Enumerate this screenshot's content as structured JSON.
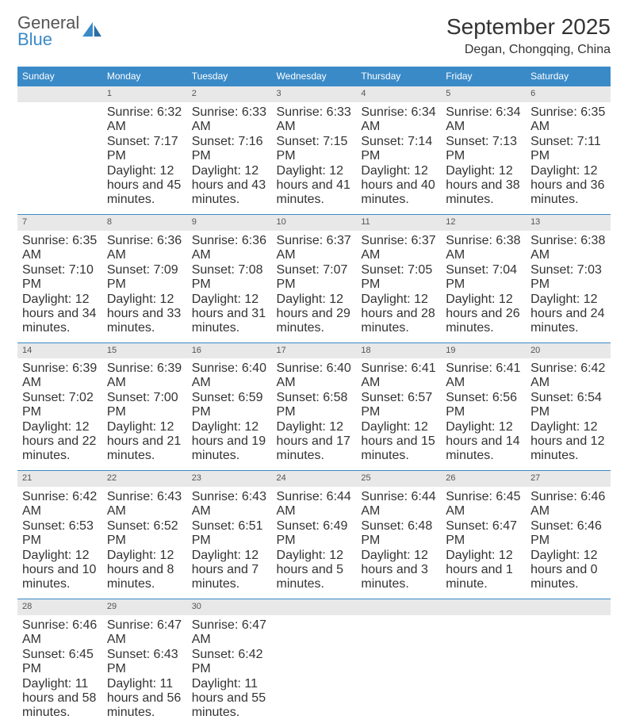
{
  "logo": {
    "word1": "General",
    "word2": "Blue"
  },
  "title": "September 2025",
  "location": "Degan, Chongqing, China",
  "colors": {
    "header_bg": "#3a8ac8",
    "header_text": "#ffffff",
    "daynum_bg": "#e8e8e8",
    "text": "#333333",
    "border": "#3a8ac8",
    "logo_gray": "#555555",
    "logo_blue": "#3a8ac8",
    "background": "#ffffff"
  },
  "typography": {
    "title_fontsize": 28,
    "location_fontsize": 16,
    "header_fontsize": 12,
    "cell_fontsize": 10,
    "font_family": "Arial"
  },
  "layout": {
    "columns": 7,
    "rows": 5,
    "col_width_pct": 14.28
  },
  "day_names": [
    "Sunday",
    "Monday",
    "Tuesday",
    "Wednesday",
    "Thursday",
    "Friday",
    "Saturday"
  ],
  "weeks": [
    [
      null,
      {
        "n": "1",
        "sr": "Sunrise: 6:32 AM",
        "ss": "Sunset: 7:17 PM",
        "dl": "Daylight: 12 hours and 45 minutes."
      },
      {
        "n": "2",
        "sr": "Sunrise: 6:33 AM",
        "ss": "Sunset: 7:16 PM",
        "dl": "Daylight: 12 hours and 43 minutes."
      },
      {
        "n": "3",
        "sr": "Sunrise: 6:33 AM",
        "ss": "Sunset: 7:15 PM",
        "dl": "Daylight: 12 hours and 41 minutes."
      },
      {
        "n": "4",
        "sr": "Sunrise: 6:34 AM",
        "ss": "Sunset: 7:14 PM",
        "dl": "Daylight: 12 hours and 40 minutes."
      },
      {
        "n": "5",
        "sr": "Sunrise: 6:34 AM",
        "ss": "Sunset: 7:13 PM",
        "dl": "Daylight: 12 hours and 38 minutes."
      },
      {
        "n": "6",
        "sr": "Sunrise: 6:35 AM",
        "ss": "Sunset: 7:11 PM",
        "dl": "Daylight: 12 hours and 36 minutes."
      }
    ],
    [
      {
        "n": "7",
        "sr": "Sunrise: 6:35 AM",
        "ss": "Sunset: 7:10 PM",
        "dl": "Daylight: 12 hours and 34 minutes."
      },
      {
        "n": "8",
        "sr": "Sunrise: 6:36 AM",
        "ss": "Sunset: 7:09 PM",
        "dl": "Daylight: 12 hours and 33 minutes."
      },
      {
        "n": "9",
        "sr": "Sunrise: 6:36 AM",
        "ss": "Sunset: 7:08 PM",
        "dl": "Daylight: 12 hours and 31 minutes."
      },
      {
        "n": "10",
        "sr": "Sunrise: 6:37 AM",
        "ss": "Sunset: 7:07 PM",
        "dl": "Daylight: 12 hours and 29 minutes."
      },
      {
        "n": "11",
        "sr": "Sunrise: 6:37 AM",
        "ss": "Sunset: 7:05 PM",
        "dl": "Daylight: 12 hours and 28 minutes."
      },
      {
        "n": "12",
        "sr": "Sunrise: 6:38 AM",
        "ss": "Sunset: 7:04 PM",
        "dl": "Daylight: 12 hours and 26 minutes."
      },
      {
        "n": "13",
        "sr": "Sunrise: 6:38 AM",
        "ss": "Sunset: 7:03 PM",
        "dl": "Daylight: 12 hours and 24 minutes."
      }
    ],
    [
      {
        "n": "14",
        "sr": "Sunrise: 6:39 AM",
        "ss": "Sunset: 7:02 PM",
        "dl": "Daylight: 12 hours and 22 minutes."
      },
      {
        "n": "15",
        "sr": "Sunrise: 6:39 AM",
        "ss": "Sunset: 7:00 PM",
        "dl": "Daylight: 12 hours and 21 minutes."
      },
      {
        "n": "16",
        "sr": "Sunrise: 6:40 AM",
        "ss": "Sunset: 6:59 PM",
        "dl": "Daylight: 12 hours and 19 minutes."
      },
      {
        "n": "17",
        "sr": "Sunrise: 6:40 AM",
        "ss": "Sunset: 6:58 PM",
        "dl": "Daylight: 12 hours and 17 minutes."
      },
      {
        "n": "18",
        "sr": "Sunrise: 6:41 AM",
        "ss": "Sunset: 6:57 PM",
        "dl": "Daylight: 12 hours and 15 minutes."
      },
      {
        "n": "19",
        "sr": "Sunrise: 6:41 AM",
        "ss": "Sunset: 6:56 PM",
        "dl": "Daylight: 12 hours and 14 minutes."
      },
      {
        "n": "20",
        "sr": "Sunrise: 6:42 AM",
        "ss": "Sunset: 6:54 PM",
        "dl": "Daylight: 12 hours and 12 minutes."
      }
    ],
    [
      {
        "n": "21",
        "sr": "Sunrise: 6:42 AM",
        "ss": "Sunset: 6:53 PM",
        "dl": "Daylight: 12 hours and 10 minutes."
      },
      {
        "n": "22",
        "sr": "Sunrise: 6:43 AM",
        "ss": "Sunset: 6:52 PM",
        "dl": "Daylight: 12 hours and 8 minutes."
      },
      {
        "n": "23",
        "sr": "Sunrise: 6:43 AM",
        "ss": "Sunset: 6:51 PM",
        "dl": "Daylight: 12 hours and 7 minutes."
      },
      {
        "n": "24",
        "sr": "Sunrise: 6:44 AM",
        "ss": "Sunset: 6:49 PM",
        "dl": "Daylight: 12 hours and 5 minutes."
      },
      {
        "n": "25",
        "sr": "Sunrise: 6:44 AM",
        "ss": "Sunset: 6:48 PM",
        "dl": "Daylight: 12 hours and 3 minutes."
      },
      {
        "n": "26",
        "sr": "Sunrise: 6:45 AM",
        "ss": "Sunset: 6:47 PM",
        "dl": "Daylight: 12 hours and 1 minute."
      },
      {
        "n": "27",
        "sr": "Sunrise: 6:46 AM",
        "ss": "Sunset: 6:46 PM",
        "dl": "Daylight: 12 hours and 0 minutes."
      }
    ],
    [
      {
        "n": "28",
        "sr": "Sunrise: 6:46 AM",
        "ss": "Sunset: 6:45 PM",
        "dl": "Daylight: 11 hours and 58 minutes."
      },
      {
        "n": "29",
        "sr": "Sunrise: 6:47 AM",
        "ss": "Sunset: 6:43 PM",
        "dl": "Daylight: 11 hours and 56 minutes."
      },
      {
        "n": "30",
        "sr": "Sunrise: 6:47 AM",
        "ss": "Sunset: 6:42 PM",
        "dl": "Daylight: 11 hours and 55 minutes."
      },
      null,
      null,
      null,
      null
    ]
  ]
}
